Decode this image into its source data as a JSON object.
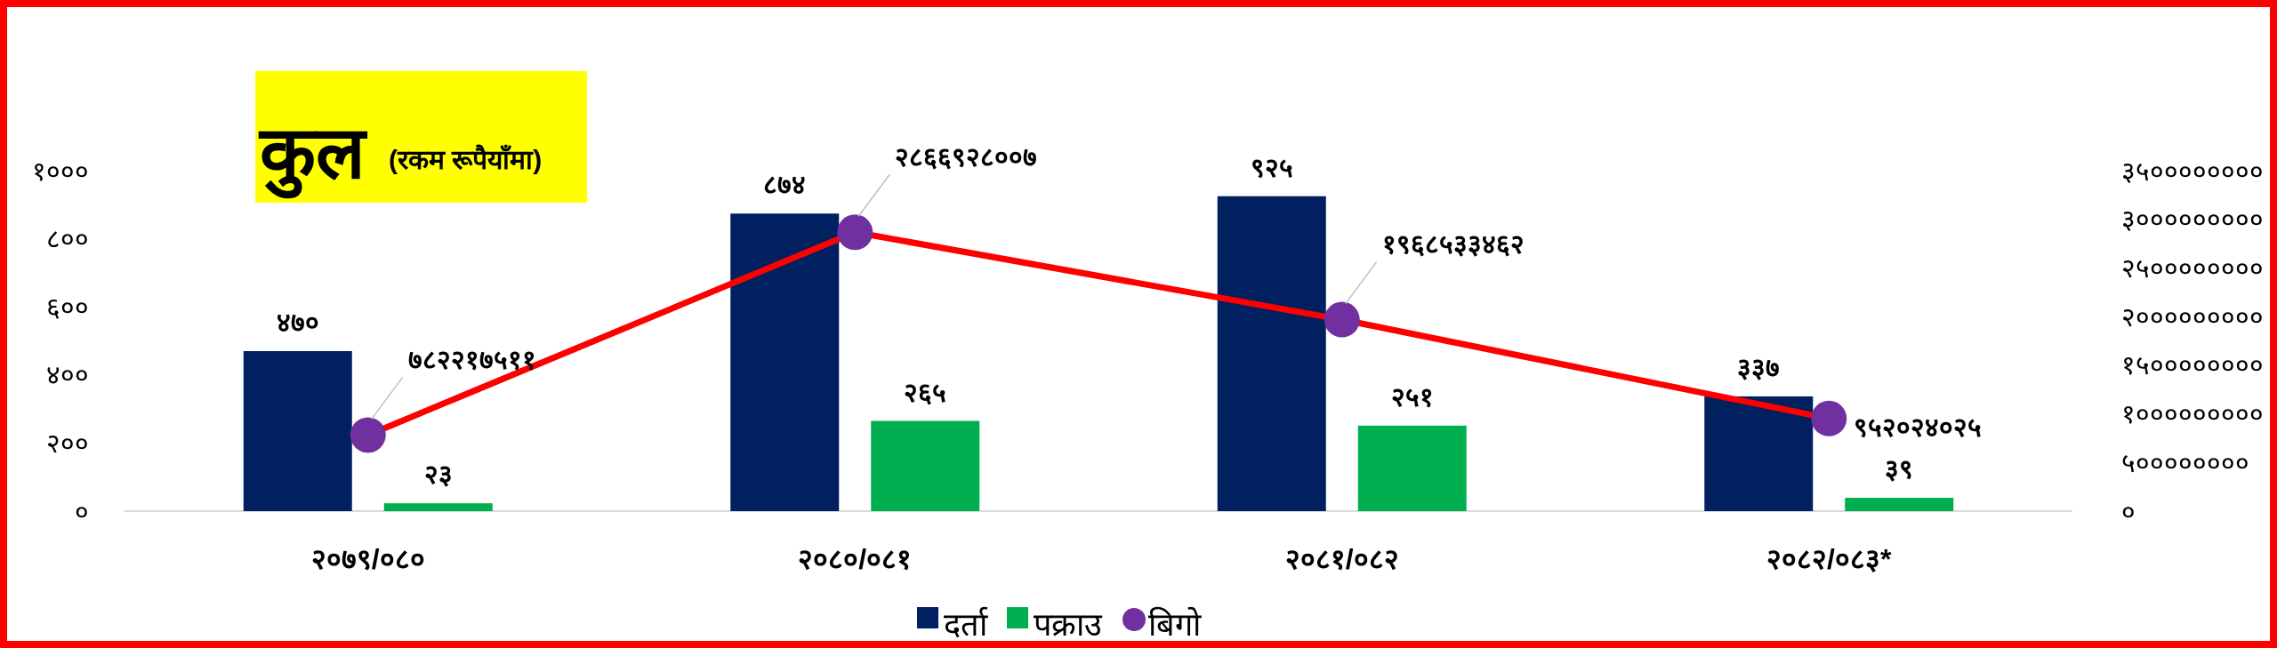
{
  "chart_data": {
    "type": "bar",
    "title": "कुल",
    "subtitle": "(रकम रूपैयाँमा)",
    "categories": [
      "२०७९/०८०",
      "२०८०/०८१",
      "२०८१/०८२",
      "२०८२/०८३*"
    ],
    "series": [
      {
        "name": "दर्ता",
        "color": "#002060",
        "values": [
          470,
          874,
          925,
          337
        ],
        "value_labels": [
          "४७०",
          "८७४",
          "९२५",
          "३३७"
        ]
      },
      {
        "name": "पक्राउ",
        "color": "#00b050",
        "values": [
          23,
          265,
          251,
          39
        ],
        "value_labels": [
          "२३",
          "२६५",
          "२५१",
          "३९"
        ]
      },
      {
        "name": "बिगो",
        "type": "line",
        "axis": "y2",
        "color": "#ff0000",
        "colors": [
          "#7030a0",
          "#7030a0",
          "#7030a0",
          "#7030a0"
        ],
        "values": [
          782217511,
          2866928007,
          1968533462,
          952024025
        ],
        "value_labels": [
          "७८२२१७५११",
          "२८६६९२८००७",
          "१९६८५३३४६२",
          "९५२०२४०२५"
        ]
      }
    ],
    "marker": "circle",
    "legend": "bottom",
    "ylim": [
      0,
      1000
    ],
    "yticks": [
      {
        "value": 0,
        "label": "०"
      },
      {
        "value": 200,
        "label": "२००"
      },
      {
        "value": 400,
        "label": "४००"
      },
      {
        "value": 600,
        "label": "६००"
      },
      {
        "value": 800,
        "label": "८००"
      },
      {
        "value": 1000,
        "label": "१०००"
      }
    ],
    "y2lim": [
      0,
      3500000000
    ],
    "y2ticks": [
      {
        "value": 0,
        "label": "०"
      },
      {
        "value": 500000000,
        "label": "५००००००००"
      },
      {
        "value": 1000000000,
        "label": "१०००००००००"
      },
      {
        "value": 1500000000,
        "label": "१५००००००००"
      },
      {
        "value": 2000000000,
        "label": "२०००००००००"
      },
      {
        "value": 2500000000,
        "label": "२५००००००००"
      },
      {
        "value": 3000000000,
        "label": "३०००००००००"
      },
      {
        "value": 3500000000,
        "label": "३५००००००००"
      }
    ]
  }
}
